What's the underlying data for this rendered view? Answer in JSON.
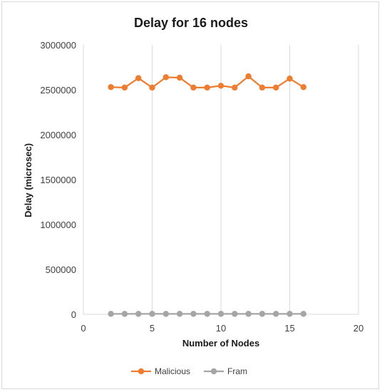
{
  "chart_data": {
    "type": "scatter",
    "title": "Delay for 16 nodes",
    "xlabel": "Number of Nodes",
    "ylabel": "Delay (microsec)",
    "xlim": [
      0,
      20
    ],
    "ylim": [
      0,
      3000000
    ],
    "x_ticks": [
      0,
      5,
      10,
      15,
      20
    ],
    "y_ticks": [
      0,
      500000,
      1000000,
      1500000,
      2000000,
      2500000,
      3000000
    ],
    "grid": "vertical",
    "legend_position": "bottom",
    "colors": {
      "Malicious": "#ed7d31",
      "Fram": "#a5a5a5",
      "grid": "#d9d9d9"
    },
    "series": [
      {
        "name": "Malicious",
        "x": [
          2,
          3,
          4,
          5,
          6,
          7,
          8,
          9,
          10,
          11,
          12,
          13,
          14,
          15,
          16
        ],
        "y": [
          2530000,
          2525000,
          2630000,
          2525000,
          2640000,
          2635000,
          2525000,
          2525000,
          2545000,
          2525000,
          2650000,
          2525000,
          2525000,
          2625000,
          2530000
        ]
      },
      {
        "name": "Fram",
        "x": [
          2,
          3,
          4,
          5,
          6,
          7,
          8,
          9,
          10,
          11,
          12,
          13,
          14,
          15,
          16
        ],
        "y": [
          5000,
          5000,
          5000,
          5000,
          5000,
          5000,
          5000,
          5000,
          5000,
          5000,
          5000,
          5000,
          5000,
          5000,
          5000
        ]
      }
    ]
  }
}
